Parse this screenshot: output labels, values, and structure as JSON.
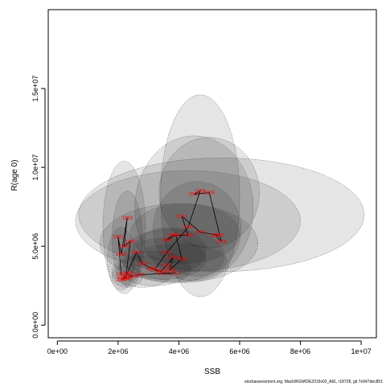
{
  "footer": "stockassessment.org, MackWGWIDE2019v02_Alt1, r18728, git 7e947dec851",
  "chart_data": {
    "type": "scatter",
    "xlabel": "SSB",
    "ylabel": "R(age 0)",
    "xlim": [
      -300000,
      10500000
    ],
    "ylim": [
      -800000,
      20000000
    ],
    "x_ticks": [
      0,
      2000000,
      4000000,
      6000000,
      8000000,
      10000000
    ],
    "x_tick_labels": [
      "0e+00",
      "2e+06",
      "4e+06",
      "6e+06",
      "8e+06",
      "1e+07"
    ],
    "y_ticks": [
      0,
      5000000,
      10000000,
      15000000
    ],
    "y_tick_labels": [
      "0.0e+00",
      "5.0e+06",
      "1.0e+07",
      "1.5e+07"
    ],
    "grid": false,
    "point_color": "#ff0000",
    "line_color": "#000000",
    "ellipse_color": "#000000",
    "path": [
      {
        "x": 2100000,
        "y": 3200000,
        "label": "1980"
      },
      {
        "x": 2000000,
        "y": 5600000,
        "label": "1981"
      },
      {
        "x": 2100000,
        "y": 4500000,
        "label": "1982"
      },
      {
        "x": 2300000,
        "y": 6800000,
        "label": "1983"
      },
      {
        "x": 2200000,
        "y": 5000000,
        "label": "1984"
      },
      {
        "x": 2400000,
        "y": 5300000,
        "label": "1985"
      },
      {
        "x": 2250000,
        "y": 3000000,
        "label": "1986"
      },
      {
        "x": 2150000,
        "y": 2900000,
        "label": "1987"
      },
      {
        "x": 2300000,
        "y": 3300000,
        "label": "1988"
      },
      {
        "x": 2600000,
        "y": 4600000,
        "label": "1989"
      },
      {
        "x": 2800000,
        "y": 3900000,
        "label": "1990"
      },
      {
        "x": 3100000,
        "y": 3600000,
        "label": "1991"
      },
      {
        "x": 3400000,
        "y": 3400000,
        "label": "1992"
      },
      {
        "x": 3600000,
        "y": 3800000,
        "label": "1993"
      },
      {
        "x": 3800000,
        "y": 4300000,
        "label": "1994"
      },
      {
        "x": 3700000,
        "y": 3500000,
        "label": "1995"
      },
      {
        "x": 4100000,
        "y": 4200000,
        "label": "1996"
      },
      {
        "x": 3900000,
        "y": 5700000,
        "label": "1997"
      },
      {
        "x": 3600000,
        "y": 5400000,
        "label": "1998"
      },
      {
        "x": 3800000,
        "y": 5700000,
        "label": "1999"
      },
      {
        "x": 4300000,
        "y": 5700000,
        "label": "2000"
      },
      {
        "x": 4100000,
        "y": 6900000,
        "label": "2001"
      },
      {
        "x": 4700000,
        "y": 5900000,
        "label": "2002"
      },
      {
        "x": 5300000,
        "y": 5700000,
        "label": "2003"
      },
      {
        "x": 5200000,
        "y": 5700000,
        "label": "2004"
      },
      {
        "x": 5400000,
        "y": 5300000,
        "label": "2005"
      },
      {
        "x": 5000000,
        "y": 8400000,
        "label": "2006"
      },
      {
        "x": 4500000,
        "y": 8300000,
        "label": "2007"
      },
      {
        "x": 4700000,
        "y": 8500000,
        "label": "2008"
      },
      {
        "x": 4300000,
        "y": 6200000,
        "label": "2009"
      },
      {
        "x": 3600000,
        "y": 4600000,
        "label": "2010"
      },
      {
        "x": 3200000,
        "y": 3500000,
        "label": "2011"
      },
      {
        "x": 3500000,
        "y": 3300000,
        "label": "2012"
      },
      {
        "x": 3900000,
        "y": 3300000,
        "label": "2013"
      },
      {
        "x": 2700000,
        "y": 3200000,
        "label": "2014"
      },
      {
        "x": 2300000,
        "y": 3000000,
        "label": "2015"
      },
      {
        "x": 2100000,
        "y": 2900000,
        "label": "2016"
      },
      {
        "x": 2300000,
        "y": 3200000,
        "label": "2017"
      },
      {
        "x": 2500000,
        "y": 3100000,
        "label": "2018"
      }
    ],
    "ellipses": [
      {
        "cx": 4700000,
        "cy": 8200000,
        "rx": 1300000,
        "ry": 6400000
      },
      {
        "cx": 5400000,
        "cy": 7000000,
        "rx": 4700000,
        "ry": 3600000
      },
      {
        "cx": 5000000,
        "cy": 8400000,
        "rx": 1650000,
        "ry": 3500000
      },
      {
        "cx": 4500000,
        "cy": 7400000,
        "rx": 1950000,
        "ry": 4600000
      },
      {
        "cx": 4300000,
        "cy": 6600000,
        "rx": 3700000,
        "ry": 3200000
      },
      {
        "cx": 4000000,
        "cy": 5200000,
        "rx": 2600000,
        "ry": 2500000
      },
      {
        "cx": 2200000,
        "cy": 6200000,
        "rx": 700000,
        "ry": 4200000
      },
      {
        "cx": 2300000,
        "cy": 5500000,
        "rx": 500000,
        "ry": 3000000
      },
      {
        "cx": 2100000,
        "cy": 4200000,
        "rx": 450000,
        "ry": 2000000
      },
      {
        "cx": 4600000,
        "cy": 6100000,
        "rx": 1450000,
        "ry": 3000000
      },
      {
        "cx": 3800000,
        "cy": 4400000,
        "rx": 1700000,
        "ry": 1700000
      },
      {
        "cx": 3500000,
        "cy": 4200000,
        "rx": 1400000,
        "ry": 1300000
      },
      {
        "cx": 4200000,
        "cy": 5800000,
        "rx": 1800000,
        "ry": 1900000
      },
      {
        "cx": 2800000,
        "cy": 3400000,
        "rx": 1000000,
        "ry": 1000000
      },
      {
        "cx": 3200000,
        "cy": 3600000,
        "rx": 1200000,
        "ry": 1100000
      },
      {
        "cx": 2300000,
        "cy": 3100000,
        "rx": 500000,
        "ry": 700000
      },
      {
        "cx": 3700000,
        "cy": 4700000,
        "rx": 1200000,
        "ry": 1500000
      },
      {
        "cx": 4000000,
        "cy": 4000000,
        "rx": 1600000,
        "ry": 1200000
      }
    ]
  }
}
